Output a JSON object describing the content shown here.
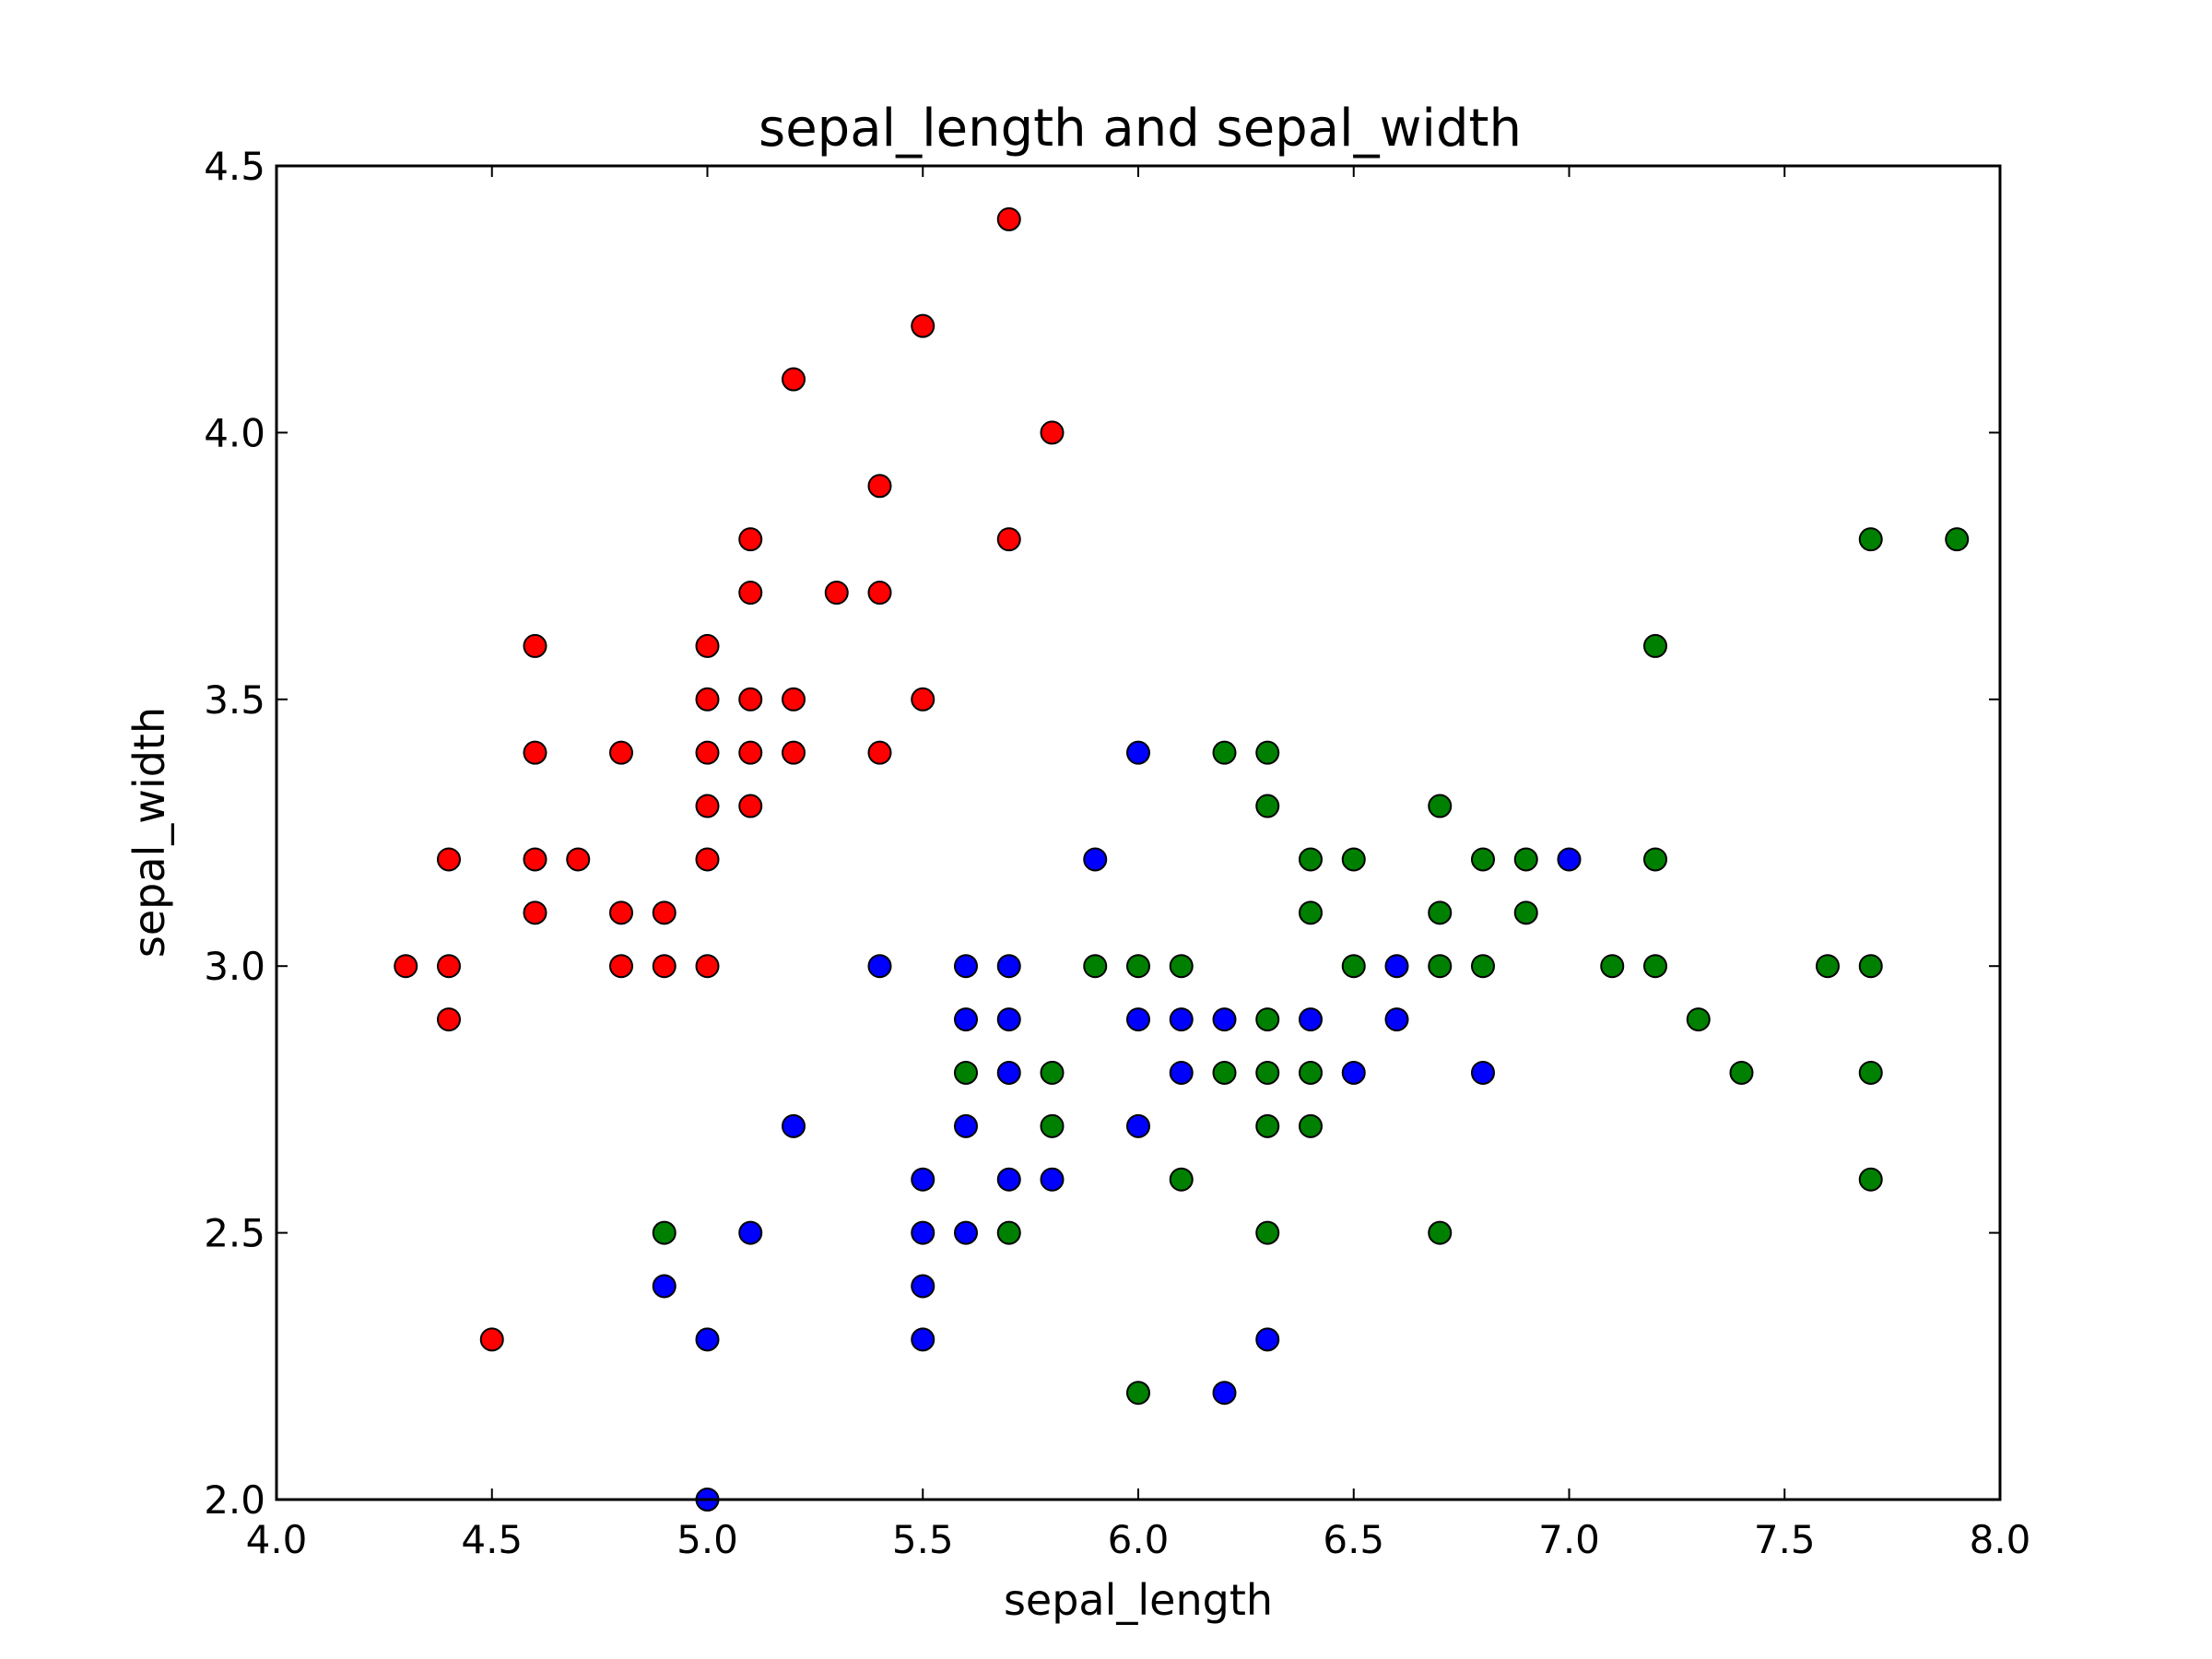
{
  "chart_data": {
    "type": "scatter",
    "title": "sepal_length  and  sepal_width",
    "xlabel": "sepal_length",
    "ylabel": "sepal_width",
    "xlim": [
      4.0,
      8.0
    ],
    "ylim": [
      2.0,
      4.5
    ],
    "x_ticks": [
      "4.0",
      "4.5",
      "5.0",
      "5.5",
      "6.0",
      "6.5",
      "7.0",
      "7.5",
      "8.0"
    ],
    "y_ticks": [
      "2.0",
      "2.5",
      "3.0",
      "3.5",
      "4.0",
      "4.5"
    ],
    "grid": false,
    "series": [
      {
        "color": "#ff0000",
        "points": [
          [
            4.3,
            3.0
          ],
          [
            4.4,
            3.2
          ],
          [
            4.4,
            3.0
          ],
          [
            4.4,
            2.9
          ],
          [
            4.5,
            2.3
          ],
          [
            4.6,
            3.6
          ],
          [
            4.6,
            3.4
          ],
          [
            4.6,
            3.2
          ],
          [
            4.6,
            3.1
          ],
          [
            4.7,
            3.2
          ],
          [
            4.8,
            3.4
          ],
          [
            4.8,
            3.1
          ],
          [
            4.8,
            3.0
          ],
          [
            4.9,
            3.1
          ],
          [
            4.9,
            3.0
          ],
          [
            5.0,
            3.6
          ],
          [
            5.0,
            3.5
          ],
          [
            5.0,
            3.4
          ],
          [
            5.0,
            3.3
          ],
          [
            5.0,
            3.2
          ],
          [
            5.0,
            3.0
          ],
          [
            5.1,
            3.8
          ],
          [
            5.1,
            3.7
          ],
          [
            5.1,
            3.5
          ],
          [
            5.1,
            3.4
          ],
          [
            5.1,
            3.3
          ],
          [
            5.2,
            4.1
          ],
          [
            5.2,
            3.5
          ],
          [
            5.2,
            3.4
          ],
          [
            5.3,
            3.7
          ],
          [
            5.4,
            3.9
          ],
          [
            5.4,
            3.7
          ],
          [
            5.4,
            3.4
          ],
          [
            5.5,
            4.2
          ],
          [
            5.5,
            3.5
          ],
          [
            5.7,
            4.4
          ],
          [
            5.7,
            3.8
          ],
          [
            5.8,
            4.0
          ]
        ]
      },
      {
        "color": "#0000ff",
        "points": [
          [
            4.9,
            2.4
          ],
          [
            5.0,
            2.3
          ],
          [
            5.0,
            2.0
          ],
          [
            5.1,
            2.5
          ],
          [
            5.2,
            2.7
          ],
          [
            5.4,
            3.0
          ],
          [
            5.5,
            2.6
          ],
          [
            5.5,
            2.5
          ],
          [
            5.5,
            2.4
          ],
          [
            5.5,
            2.3
          ],
          [
            5.6,
            3.0
          ],
          [
            5.6,
            2.9
          ],
          [
            5.6,
            2.7
          ],
          [
            5.6,
            2.5
          ],
          [
            5.7,
            3.0
          ],
          [
            5.7,
            2.9
          ],
          [
            5.7,
            2.8
          ],
          [
            5.7,
            2.6
          ],
          [
            5.8,
            2.6
          ],
          [
            5.9,
            3.2
          ],
          [
            6.0,
            3.4
          ],
          [
            6.0,
            2.9
          ],
          [
            6.0,
            2.7
          ],
          [
            6.1,
            2.9
          ],
          [
            6.1,
            2.8
          ],
          [
            6.2,
            2.9
          ],
          [
            6.2,
            2.2
          ],
          [
            6.3,
            2.3
          ],
          [
            6.4,
            2.9
          ],
          [
            6.5,
            2.8
          ],
          [
            6.6,
            3.0
          ],
          [
            6.6,
            2.9
          ],
          [
            6.8,
            2.8
          ],
          [
            7.0,
            3.2
          ]
        ]
      },
      {
        "color": "#008000",
        "points": [
          [
            4.9,
            2.5
          ],
          [
            5.6,
            2.8
          ],
          [
            5.7,
            2.5
          ],
          [
            5.8,
            2.8
          ],
          [
            5.8,
            2.7
          ],
          [
            5.9,
            3.0
          ],
          [
            6.0,
            3.0
          ],
          [
            6.0,
            2.2
          ],
          [
            6.1,
            3.0
          ],
          [
            6.1,
            2.6
          ],
          [
            6.2,
            3.4
          ],
          [
            6.2,
            2.8
          ],
          [
            6.3,
            3.4
          ],
          [
            6.3,
            3.3
          ],
          [
            6.3,
            2.9
          ],
          [
            6.3,
            2.8
          ],
          [
            6.3,
            2.7
          ],
          [
            6.3,
            2.5
          ],
          [
            6.4,
            3.2
          ],
          [
            6.4,
            3.1
          ],
          [
            6.4,
            2.8
          ],
          [
            6.4,
            2.7
          ],
          [
            6.5,
            3.2
          ],
          [
            6.5,
            3.0
          ],
          [
            6.7,
            3.3
          ],
          [
            6.7,
            3.1
          ],
          [
            6.7,
            3.0
          ],
          [
            6.7,
            2.5
          ],
          [
            6.8,
            3.2
          ],
          [
            6.8,
            3.0
          ],
          [
            6.9,
            3.2
          ],
          [
            6.9,
            3.1
          ],
          [
            7.1,
            3.0
          ],
          [
            7.2,
            3.6
          ],
          [
            7.2,
            3.2
          ],
          [
            7.2,
            3.0
          ],
          [
            7.3,
            2.9
          ],
          [
            7.4,
            2.8
          ],
          [
            7.6,
            3.0
          ],
          [
            7.7,
            3.8
          ],
          [
            7.7,
            3.0
          ],
          [
            7.7,
            2.8
          ],
          [
            7.7,
            2.6
          ],
          [
            7.9,
            3.8
          ]
        ]
      }
    ]
  }
}
